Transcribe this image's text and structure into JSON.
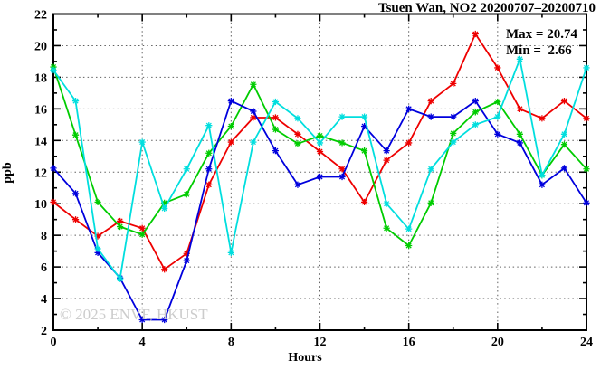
{
  "title": "Tsuen Wan, NO2 20200707–20200710",
  "annotation": {
    "max_label": "Max = 20.74",
    "min_label": "Min =  2.66"
  },
  "watermark": "© 2025 ENVF, HKUST",
  "colors": {
    "frame": "#000000",
    "grid": "#606060",
    "background": "#ffffff",
    "red_series": "#ee0000",
    "green_series": "#00cc00",
    "blue_series": "#0000dd",
    "cyan_series": "#00dede"
  },
  "chart_data": {
    "type": "line",
    "title": "Tsuen Wan, NO2 20200707–20200710",
    "xlabel": "Hours",
    "ylabel": "ppb",
    "xlim": [
      0,
      24
    ],
    "ylim": [
      2,
      22
    ],
    "xticks_major": [
      0,
      4,
      8,
      12,
      16,
      20,
      24
    ],
    "xtick_minor_step": 2,
    "yticks_major": [
      2,
      4,
      6,
      8,
      10,
      12,
      14,
      16,
      18,
      20,
      22
    ],
    "ytick_minor_step": 1,
    "grid": "dotted",
    "legend_position": "none",
    "marker": "asterisk",
    "x": [
      0,
      1,
      2,
      3,
      4,
      5,
      6,
      7,
      8,
      9,
      10,
      11,
      12,
      13,
      14,
      15,
      16,
      17,
      18,
      19,
      20,
      21,
      22,
      23,
      24
    ],
    "series": [
      {
        "name": "series-red",
        "color": "#ee0000",
        "values": [
          10.1,
          9.0,
          7.95,
          8.9,
          8.45,
          5.85,
          6.85,
          11.2,
          13.9,
          15.45,
          15.45,
          14.4,
          13.3,
          12.2,
          10.1,
          12.75,
          13.85,
          16.5,
          17.6,
          20.74,
          18.6,
          16.0,
          15.4,
          16.5,
          15.4
        ]
      },
      {
        "name": "series-green",
        "color": "#00cc00",
        "values": [
          18.65,
          14.35,
          10.1,
          8.55,
          8.05,
          10.05,
          10.6,
          13.2,
          14.9,
          17.55,
          14.7,
          13.8,
          14.3,
          13.85,
          13.35,
          8.45,
          7.35,
          10.05,
          14.45,
          15.8,
          16.45,
          14.4,
          11.8,
          13.75,
          12.2
        ]
      },
      {
        "name": "series-blue",
        "color": "#0000dd",
        "values": [
          12.25,
          10.65,
          6.9,
          5.3,
          2.66,
          2.66,
          6.4,
          12.2,
          16.5,
          15.85,
          13.35,
          11.2,
          11.7,
          11.7,
          14.9,
          13.35,
          16.0,
          15.5,
          15.5,
          16.5,
          14.4,
          13.85,
          11.2,
          12.25,
          10.05
        ]
      },
      {
        "name": "series-cyan",
        "color": "#00dede",
        "values": [
          18.45,
          16.5,
          7.15,
          5.25,
          13.9,
          9.7,
          12.2,
          14.95,
          6.9,
          13.9,
          16.45,
          15.4,
          13.85,
          15.5,
          15.5,
          10.0,
          8.4,
          12.2,
          13.9,
          15.0,
          15.5,
          19.15,
          11.8,
          14.4,
          18.6
        ]
      }
    ],
    "stats": {
      "max": 20.74,
      "min": 2.66
    }
  }
}
